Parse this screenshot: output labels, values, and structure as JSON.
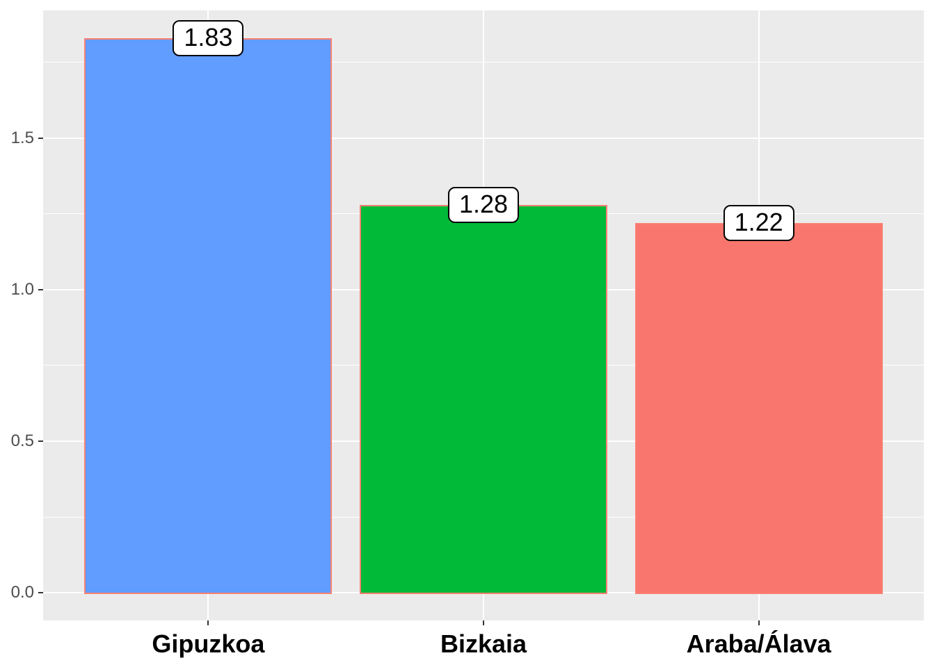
{
  "chart_data": {
    "type": "bar",
    "title": "",
    "xlabel": "",
    "ylabel": "",
    "categories": [
      "Gipuzkoa",
      "Bizkaia",
      "Araba/Álava"
    ],
    "values": [
      1.83,
      1.28,
      1.22
    ],
    "bar_labels": [
      "1.83",
      "1.28",
      "1.22"
    ],
    "bar_fill_colors": [
      "#619CFF",
      "#00BA38",
      "#F8766D"
    ],
    "bar_stroke_color": "#FA8072",
    "y_tick_labels": [
      "0.0",
      "0.5",
      "1.0",
      "1.5"
    ],
    "y_tick_values": [
      0,
      0.5,
      1.0,
      1.5
    ],
    "y_minor_values": [
      0.25,
      0.75,
      1.25,
      1.75
    ],
    "ylim": [
      -0.0915,
      1.9215
    ],
    "legend": false,
    "grid": true,
    "panel_background": "#EBEBEB",
    "grid_color": "#FFFFFF",
    "y_axis_text_color": "#4D4D4D",
    "x_axis_text_color": "#000000",
    "tick_mark_color": "#333333"
  }
}
